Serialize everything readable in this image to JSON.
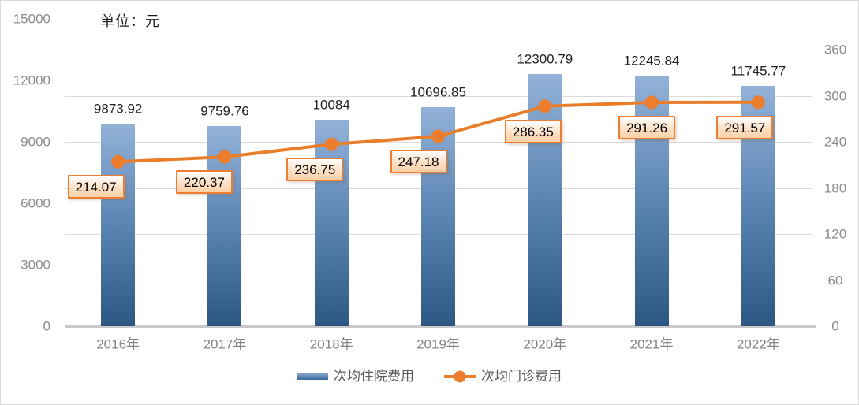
{
  "chart_data": {
    "type": "combo-bar-line",
    "title": "",
    "unit_label": "单位：元",
    "categories": [
      "2016年",
      "2017年",
      "2018年",
      "2019年",
      "2020年",
      "2021年",
      "2022年"
    ],
    "series": [
      {
        "name": "次均住院费用",
        "type": "bar",
        "axis": "left",
        "values": [
          9873.92,
          9759.76,
          10084,
          10696.85,
          12300.79,
          12245.84,
          11745.77
        ],
        "labels": [
          "9873.92",
          "9759.76",
          "10084",
          "10696.85",
          "12300.79",
          "12245.84",
          "11745.77"
        ],
        "color_top": "#93b2d8",
        "color_bottom": "#2c5784"
      },
      {
        "name": "次均门诊费用",
        "type": "line",
        "axis": "right",
        "values": [
          214.07,
          220.37,
          236.75,
          247.18,
          286.35,
          291.26,
          291.57
        ],
        "labels": [
          "214.07",
          "220.37",
          "236.75",
          "247.18",
          "286.35",
          "291.26",
          "291.57"
        ],
        "color": "#e87e2b",
        "marker_color": "#eb7d2c",
        "label_box_border": "#ed7d31"
      }
    ],
    "left_axis": {
      "min": 0,
      "max": 15000,
      "ticks": [
        15000,
        12000,
        9000,
        6000,
        3000,
        0
      ]
    },
    "right_axis": {
      "min": 0,
      "max": 360,
      "ticks": [
        360,
        300,
        240,
        180,
        120,
        60,
        0
      ]
    },
    "grid": "horizontal",
    "gridline_color": "#dadada",
    "legend_position": "bottom"
  }
}
